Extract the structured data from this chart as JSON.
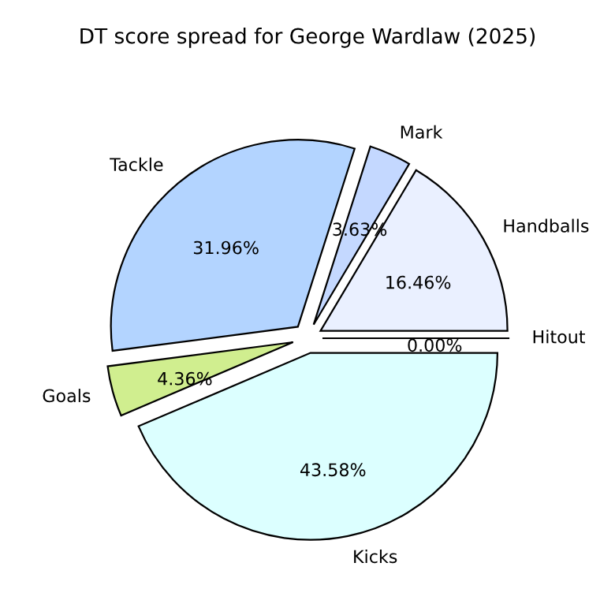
{
  "chart_data": {
    "type": "pie",
    "title": "DT score spread for George Wardlaw (2025)",
    "categories": [
      "Hitout",
      "Handballs",
      "Mark",
      "Tackle",
      "Goals",
      "Kicks"
    ],
    "values": [
      0.0,
      16.46,
      3.63,
      31.96,
      4.36,
      43.58
    ],
    "value_labels": [
      "0.00%",
      "16.46%",
      "3.63%",
      "31.96%",
      "4.36%",
      "43.58%"
    ],
    "colors": [
      "#ffffff",
      "#eaf0ff",
      "#c4d8ff",
      "#b3d4ff",
      "#d0ee8f",
      "#dcffff"
    ]
  }
}
